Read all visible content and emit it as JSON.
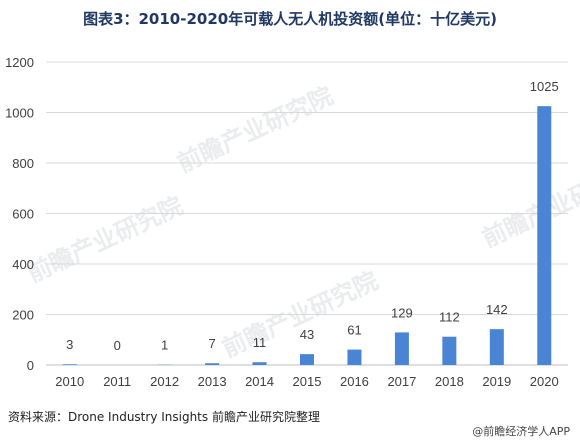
{
  "title": "图表3：2010-2020年可载人无人机投资额(单位：十亿美元)",
  "source": "资料来源：Drone Industry Insights 前瞻产业研究院整理",
  "brand": "@前瞻经济学人APP",
  "watermark": "前瞻产业研究院",
  "colors": {
    "bar": "#4a84d4",
    "grid": "#d9d9d9",
    "title": "#1f3864"
  },
  "chart_data": {
    "type": "bar",
    "categories": [
      "2010",
      "2011",
      "2012",
      "2013",
      "2014",
      "2015",
      "2016",
      "2017",
      "2018",
      "2019",
      "2020"
    ],
    "values": [
      3,
      0,
      1,
      7,
      11,
      43,
      61,
      129,
      112,
      142,
      1025
    ],
    "value_labels": [
      "3",
      "0",
      "1",
      "7",
      "11",
      "43",
      "61",
      "129",
      "112",
      "142",
      "1025"
    ],
    "yticks": [
      0,
      200,
      400,
      600,
      800,
      1000,
      1200
    ],
    "ylim": [
      0,
      1200
    ],
    "grid": true,
    "legend": "none"
  }
}
